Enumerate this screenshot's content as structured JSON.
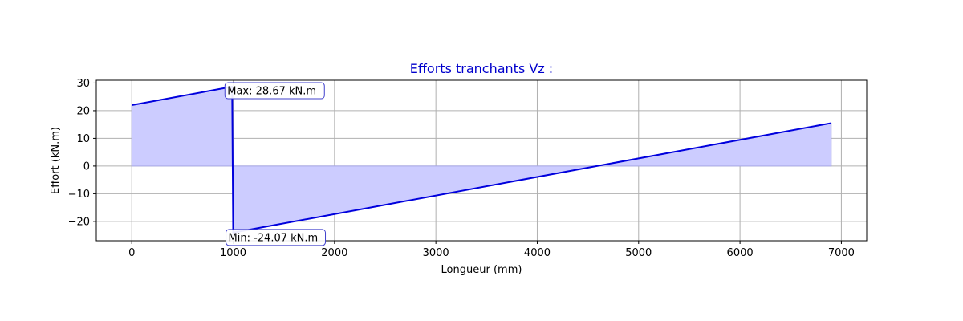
{
  "chart_data": {
    "type": "area",
    "title": "Efforts tranchants Vz :",
    "xlabel": "Longueur (mm)",
    "ylabel": "Effort (kN.m)",
    "xlim": [
      -350,
      7250
    ],
    "ylim": [
      -27,
      31
    ],
    "xticks": [
      0,
      1000,
      2000,
      3000,
      4000,
      5000,
      6000,
      7000
    ],
    "yticks": [
      -20,
      -10,
      0,
      10,
      20,
      30
    ],
    "grid": true,
    "colors": {
      "line": "#0000dd",
      "fill": "#ccccff",
      "fill_edge": "#a8a8e8",
      "grid": "#b0b0b0",
      "title": "#0000cc",
      "annot_border": "#4040cc"
    },
    "series": [
      {
        "x": [
          0,
          990,
          1000,
          6900
        ],
        "y": [
          22.0,
          28.67,
          -24.07,
          15.5
        ]
      }
    ],
    "annotations": [
      {
        "label": "Max: 28.67 kN.m",
        "x": 990,
        "y": 28.67
      },
      {
        "label": "Min: -24.07 kN.m",
        "x": 1000,
        "y": -24.07
      }
    ]
  }
}
